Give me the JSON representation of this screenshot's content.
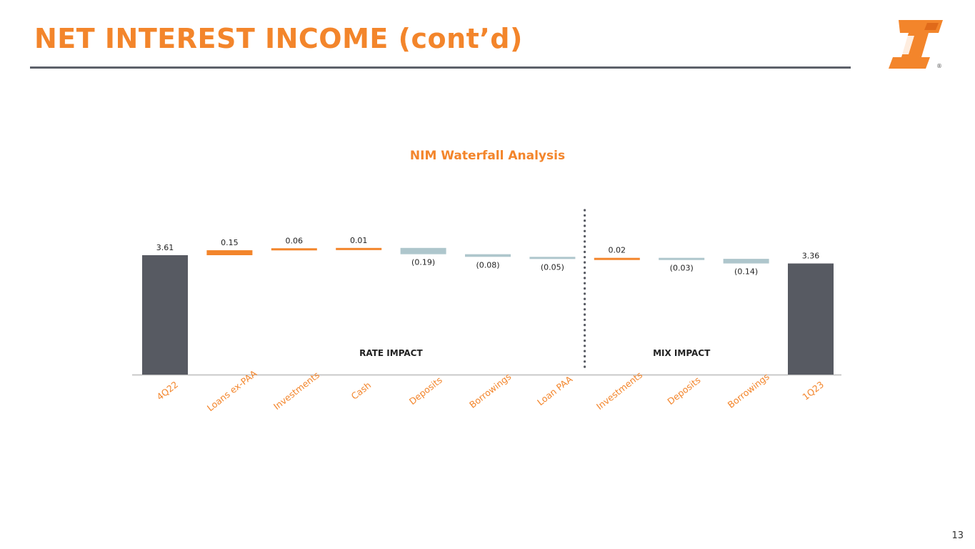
{
  "slide": {
    "title": "NET INTEREST INCOME (cont’d)",
    "page_number": "13"
  },
  "logo": {
    "icon": "company-logo-icon",
    "registered_mark": "®"
  },
  "colors": {
    "accent": "#F3852B",
    "total": "#575A62",
    "decrease": "#AEC6CC",
    "divider": "#5D6169"
  },
  "chart_data": {
    "type": "bar",
    "subtype": "waterfall",
    "title": "NIM Waterfall Analysis",
    "xlabel": "",
    "ylabel": "",
    "categories": [
      "4Q22",
      "Loans ex-PAA",
      "Investments",
      "Cash",
      "Deposits",
      "Borrowings",
      "Loan PAA",
      "Investments",
      "Deposits",
      "Borrowings",
      "1Q23"
    ],
    "values": [
      3.61,
      0.15,
      0.06,
      0.01,
      -0.19,
      -0.08,
      -0.05,
      0.02,
      -0.03,
      -0.14,
      3.36
    ],
    "kinds": [
      "total",
      "increase",
      "increase",
      "increase",
      "decrease",
      "decrease",
      "decrease",
      "increase",
      "decrease",
      "decrease",
      "total"
    ],
    "value_labels": [
      "3.61",
      "0.15",
      "0.06",
      "0.01",
      "(0.19)",
      "(0.08)",
      "(0.05)",
      "0.02",
      "(0.03)",
      "(0.14)",
      "3.36"
    ],
    "groups": [
      {
        "label": "RATE IMPACT",
        "from": 1,
        "to": 6
      },
      {
        "label": "MIX IMPACT",
        "from": 7,
        "to": 9
      }
    ],
    "divider_after_index": 6,
    "grid": false,
    "legend": "none"
  }
}
